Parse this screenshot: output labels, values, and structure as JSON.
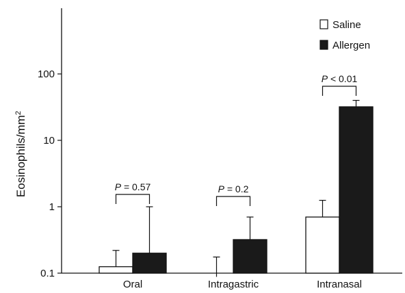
{
  "chart_data": {
    "type": "bar",
    "ylabel_main": "Eosinophils/mm",
    "ylabel_sup": "2",
    "yscale": "log",
    "ylim": [
      0.08,
      1000
    ],
    "yticks": [
      {
        "value": 0.1,
        "label": "0.1"
      },
      {
        "value": 1,
        "label": "1"
      },
      {
        "value": 10,
        "label": "10"
      },
      {
        "value": 100,
        "label": "100"
      }
    ],
    "categories": [
      "Oral",
      "Intragastric",
      "Intranasal"
    ],
    "series": [
      {
        "name": "Saline",
        "fill": "#ffffff",
        "values": [
          0.125,
          0.088,
          0.7
        ],
        "err_upper": [
          0.22,
          0.175,
          1.25
        ]
      },
      {
        "name": "Allergen",
        "fill": "#1a1a1a",
        "values": [
          0.2,
          0.32,
          32
        ],
        "err_upper": [
          1.0,
          0.7,
          40
        ]
      }
    ],
    "pvalues": [
      {
        "p": "P",
        "rest": " = 0.57"
      },
      {
        "p": "P",
        "rest": " = 0.2"
      },
      {
        "p": "P",
        "rest": " < 0.01"
      }
    ],
    "legend_position": "top-right",
    "grid": false
  }
}
